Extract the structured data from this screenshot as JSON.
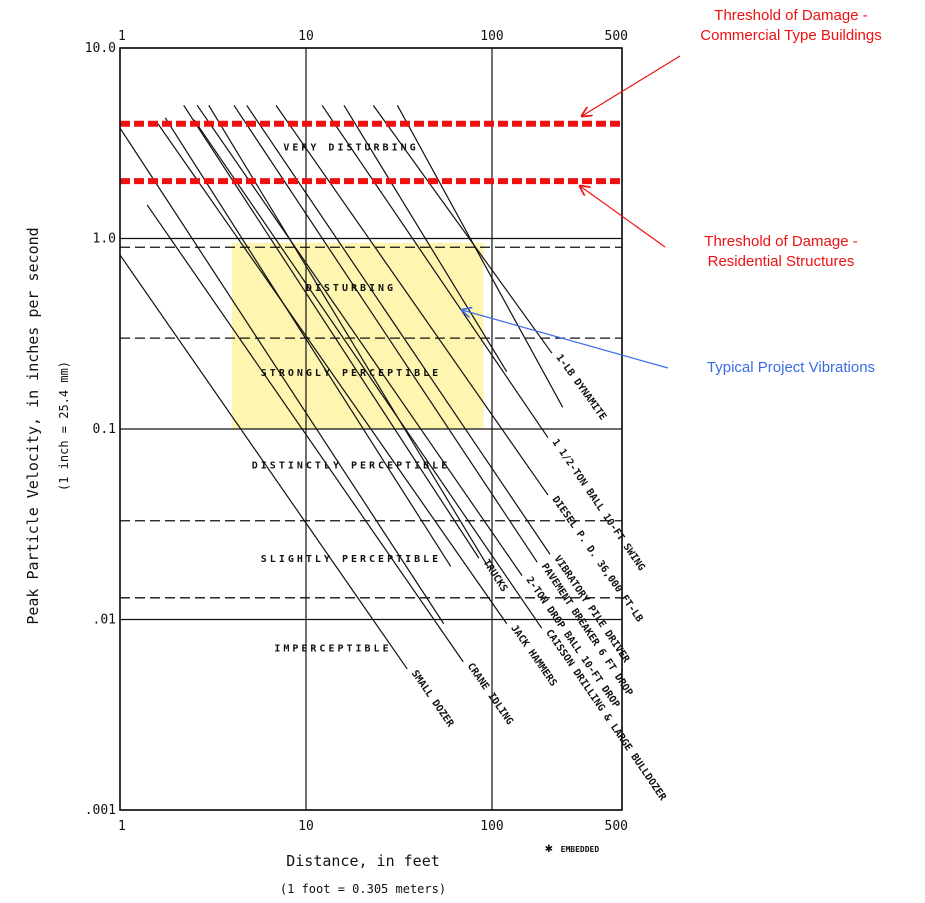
{
  "chart_data": {
    "type": "line",
    "title": "",
    "xlabel": "Distance, in feet",
    "xlabel_note": "(1 foot = 0.305 meters)",
    "ylabel": "Peak Particle Velocity, in inches per second",
    "ylabel_note": "(1 inch = 25.4 mm)",
    "x_scale": "log",
    "y_scale": "log",
    "xlim": [
      1,
      500
    ],
    "ylim": [
      0.001,
      10
    ],
    "x_ticks": [
      "1",
      "10",
      "100",
      "500"
    ],
    "y_ticks": [
      ".001",
      ".01",
      "0.1",
      "1.0",
      "10.0"
    ],
    "grid": true,
    "zone_boundaries": [
      {
        "y": 0.9,
        "style": "dashed"
      },
      {
        "y": 0.3,
        "style": "dashed"
      },
      {
        "y": 0.033,
        "style": "dashed"
      },
      {
        "y": 0.013,
        "style": "dashed"
      }
    ],
    "zones": [
      {
        "label": "VERY DISTURBING",
        "x": 10,
        "y": 2.9
      },
      {
        "label": "DISTURBING",
        "x": 10,
        "y": 0.53
      },
      {
        "label": "STRONGLY PERCEPTIBLE",
        "x": 10,
        "y": 0.19
      },
      {
        "label": "DISTINCTLY PERCEPTIBLE",
        "x": 10,
        "y": 0.062
      },
      {
        "label": "SLIGHTLY PERCEPTIBLE",
        "x": 10,
        "y": 0.02
      },
      {
        "label": "IMPERCEPTIBLE",
        "x": 8,
        "y": 0.0068
      }
    ],
    "series": [
      {
        "name": "SMALL DOZER",
        "x": [
          1,
          35
        ],
        "y": [
          0.82,
          0.0055
        ]
      },
      {
        "name": "CRANE IDLING",
        "x": [
          1.4,
          70
        ],
        "y": [
          1.5,
          0.006
        ]
      },
      {
        "name": "JACK HAMMERS",
        "x": [
          1.6,
          120
        ],
        "y": [
          4.0,
          0.0095
        ]
      },
      {
        "name": "CAISSON DRILLING & LARGE BULLDOZER",
        "x": [
          2.5,
          185
        ],
        "y": [
          4.2,
          0.009
        ]
      },
      {
        "name": "TRUCKS",
        "x": [
          2.2,
          85
        ],
        "y": [
          5,
          0.021
        ]
      },
      {
        "name": "2-TON DROP BALL 10-FT DROP",
        "x": [
          2.6,
          145
        ],
        "y": [
          5,
          0.017
        ]
      },
      {
        "name": "PAVEMENT BREAKER 6 FT DROP",
        "x": [
          4.1,
          175
        ],
        "y": [
          5,
          0.02
        ]
      },
      {
        "name": "VIBRATORY PILE DRIVER",
        "x": [
          4.8,
          205
        ],
        "y": [
          5,
          0.022
        ]
      },
      {
        "name": "DIESEL P. D. 36,000 FT-LB",
        "x": [
          6.9,
          200
        ],
        "y": [
          5,
          0.045
        ]
      },
      {
        "name": "1 1/2-TON BALL 10-FT SWING",
        "x": [
          12.2,
          200
        ],
        "y": [
          5,
          0.09
        ]
      },
      {
        "name": "1-LB DYNAMITE",
        "x": [
          23,
          210
        ],
        "y": [
          5,
          0.25
        ]
      },
      {
        "name": "",
        "x": [
          1,
          55
        ],
        "y": [
          3.8,
          0.0095
        ]
      },
      {
        "name": "",
        "x": [
          1.75,
          60
        ],
        "y": [
          4.3,
          0.019
        ]
      },
      {
        "name": "",
        "x": [
          3,
          95
        ],
        "y": [
          5,
          0.019
        ]
      },
      {
        "name": "",
        "x": [
          16,
          120
        ],
        "y": [
          5,
          0.2
        ]
      },
      {
        "name": "",
        "x": [
          31,
          240
        ],
        "y": [
          5,
          0.13
        ]
      }
    ],
    "thresholds": [
      {
        "label": "Threshold of Damage - Commercial Type Buildings",
        "y": 4.0,
        "color": "#ee1111"
      },
      {
        "label": "Threshold of Damage - Residential Structures",
        "y": 2.0,
        "color": "#ee1111"
      }
    ],
    "highlight": {
      "label": "Typical Project Vibrations",
      "x_range": [
        4,
        90
      ],
      "y_range": [
        0.1,
        0.95
      ],
      "color": "#fdf5b0",
      "label_color": "#3b6ce8"
    },
    "footnote": "EMBEDDED"
  }
}
